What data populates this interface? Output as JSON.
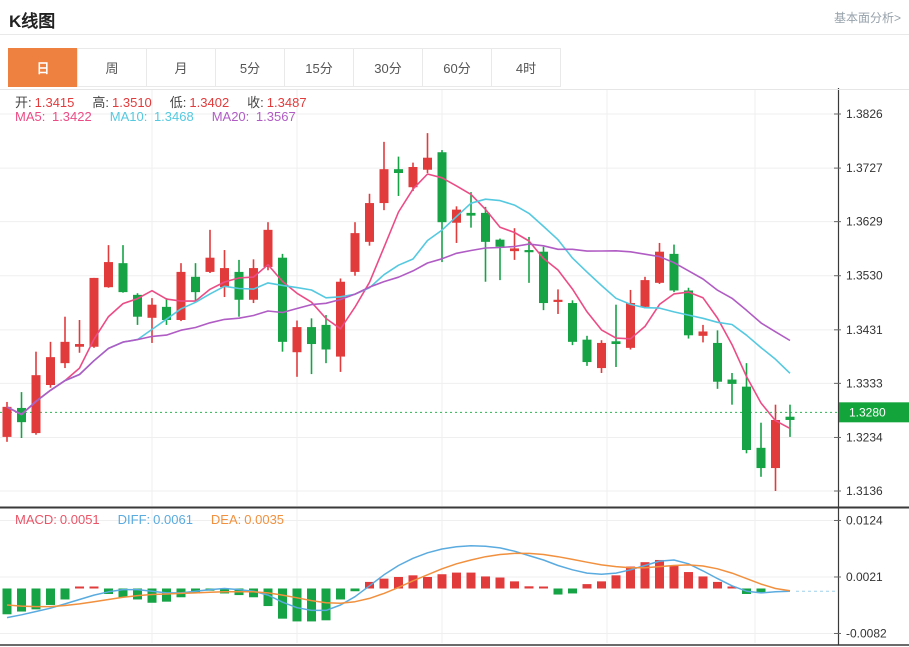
{
  "header": {
    "title": "K线图",
    "link": "基本面分析>"
  },
  "tabs": [
    {
      "label": "日",
      "active": true
    },
    {
      "label": "周",
      "active": false
    },
    {
      "label": "月",
      "active": false
    },
    {
      "label": "5分",
      "active": false
    },
    {
      "label": "15分",
      "active": false
    },
    {
      "label": "30分",
      "active": false
    },
    {
      "label": "60分",
      "active": false
    },
    {
      "label": "4时",
      "active": false
    }
  ],
  "ohlc": {
    "open_label": "开:",
    "open": "1.3415",
    "high_label": "高:",
    "high": "1.3510",
    "low_label": "低:",
    "low": "1.3402",
    "close_label": "收:",
    "close": "1.3487"
  },
  "ma_header": {
    "ma5_label": "MA5:",
    "ma5": "1.3422",
    "ma10_label": "MA10:",
    "ma10": "1.3468",
    "ma20_label": "MA20:",
    "ma20": "1.3567"
  },
  "macd_header": {
    "macd_label": "MACD:",
    "macd": "0.0051",
    "diff_label": "DIFF:",
    "diff": "0.0061",
    "dea_label": "DEA:",
    "dea": "0.0035"
  },
  "colors": {
    "up": "#e23b3c",
    "down": "#16a346",
    "ma5": "#ec4c85",
    "ma10": "#55c9e0",
    "ma20": "#b05cc4",
    "diff": "#5aabdf",
    "dea": "#f1903e",
    "accent_tab": "#ee8140",
    "tag_bg": "#14a43c",
    "dotted_line": "#2db853",
    "value_red": "#e23b3c",
    "macd_label_red": "#ea5467",
    "grid": "#efefef",
    "axis_dark": "#3a3a3a",
    "axis_text": "#333333"
  },
  "chart_data": {
    "type": "candlestick+macd",
    "title": "K线图",
    "legend": [
      "MA5",
      "MA10",
      "MA20",
      "MACD",
      "DIFF",
      "DEA"
    ],
    "price_ticks": [
      1.3826,
      1.3727,
      1.3629,
      1.353,
      1.3431,
      1.3333,
      1.3234,
      1.3136
    ],
    "macd_ticks": [
      0.0124,
      0.0021,
      -0.0082
    ],
    "current_price": 1.328,
    "price_range": [
      1.3136,
      1.3826
    ],
    "macd_range": [
      -0.0082,
      0.0124
    ],
    "ma_periods": [
      5,
      10,
      20
    ],
    "candles_ohlc": [
      [
        1.3235,
        1.3299,
        1.3226,
        1.329
      ],
      [
        1.3288,
        1.3317,
        1.3233,
        1.3262
      ],
      [
        1.3242,
        1.3391,
        1.3239,
        1.3348
      ],
      [
        1.333,
        1.3409,
        1.3325,
        1.3381
      ],
      [
        1.337,
        1.3455,
        1.3361,
        1.3409
      ],
      [
        1.34,
        1.3449,
        1.3389,
        1.3405
      ],
      [
        1.34,
        1.3526,
        1.3398,
        1.3526
      ],
      [
        1.3509,
        1.3586,
        1.3508,
        1.3555
      ],
      [
        1.3553,
        1.3586,
        1.3499,
        1.35
      ],
      [
        1.3495,
        1.3498,
        1.344,
        1.3455
      ],
      [
        1.3453,
        1.3489,
        1.3407,
        1.3477
      ],
      [
        1.3473,
        1.3489,
        1.344,
        1.3449
      ],
      [
        1.3449,
        1.3553,
        1.3447,
        1.3537
      ],
      [
        1.3528,
        1.3553,
        1.3482,
        1.35
      ],
      [
        1.3537,
        1.3614,
        1.3535,
        1.3563
      ],
      [
        1.3509,
        1.3577,
        1.3491,
        1.3544
      ],
      [
        1.3537,
        1.3559,
        1.3455,
        1.3486
      ],
      [
        1.3486,
        1.356,
        1.348,
        1.3544
      ],
      [
        1.3546,
        1.3628,
        1.354,
        1.3614
      ],
      [
        1.3563,
        1.357,
        1.3391,
        1.3409
      ],
      [
        1.339,
        1.3448,
        1.3345,
        1.3436
      ],
      [
        1.3436,
        1.3452,
        1.335,
        1.3405
      ],
      [
        1.344,
        1.3458,
        1.337,
        1.3395
      ],
      [
        1.3382,
        1.3525,
        1.3354,
        1.3519
      ],
      [
        1.3537,
        1.3628,
        1.353,
        1.3608
      ],
      [
        1.3592,
        1.368,
        1.3585,
        1.3663
      ],
      [
        1.3663,
        1.3775,
        1.365,
        1.3725
      ],
      [
        1.3725,
        1.3748,
        1.3676,
        1.3718
      ],
      [
        1.3692,
        1.3737,
        1.3685,
        1.3729
      ],
      [
        1.3724,
        1.3791,
        1.3718,
        1.3746
      ],
      [
        1.3756,
        1.376,
        1.3555,
        1.3628
      ],
      [
        1.3627,
        1.3657,
        1.359,
        1.3651
      ],
      [
        1.3645,
        1.3683,
        1.3618,
        1.364
      ],
      [
        1.3645,
        1.3656,
        1.3519,
        1.3592
      ],
      [
        1.3596,
        1.3598,
        1.3522,
        1.3583
      ],
      [
        1.3575,
        1.3617,
        1.3559,
        1.358
      ],
      [
        1.3577,
        1.3601,
        1.3517,
        1.3573
      ],
      [
        1.3574,
        1.3583,
        1.3467,
        1.348
      ],
      [
        1.3482,
        1.3505,
        1.346,
        1.3486
      ],
      [
        1.348,
        1.3485,
        1.3403,
        1.3409
      ],
      [
        1.3413,
        1.342,
        1.3365,
        1.3372
      ],
      [
        1.3361,
        1.3412,
        1.3352,
        1.3407
      ],
      [
        1.341,
        1.3477,
        1.3363,
        1.3405
      ],
      [
        1.3398,
        1.3504,
        1.3395,
        1.348
      ],
      [
        1.3473,
        1.3528,
        1.347,
        1.3522
      ],
      [
        1.3517,
        1.359,
        1.3515,
        1.3574
      ],
      [
        1.357,
        1.3587,
        1.35,
        1.3503
      ],
      [
        1.3503,
        1.3508,
        1.3415,
        1.3421
      ],
      [
        1.342,
        1.344,
        1.3408,
        1.3428
      ],
      [
        1.3407,
        1.343,
        1.3323,
        1.3336
      ],
      [
        1.334,
        1.3352,
        1.3294,
        1.3332
      ],
      [
        1.3327,
        1.337,
        1.3205,
        1.3211
      ],
      [
        1.3215,
        1.3261,
        1.3162,
        1.3178
      ],
      [
        1.3178,
        1.3294,
        1.3136,
        1.3266
      ],
      [
        1.3272,
        1.3294,
        1.3235,
        1.3266
      ]
    ],
    "macd": {
      "histogram": [
        -0.0047,
        -0.0042,
        -0.0038,
        -0.003,
        -0.002,
        0.0002,
        0.0002,
        -0.001,
        -0.0016,
        -0.002,
        -0.0026,
        -0.0024,
        -0.0016,
        -0.0009,
        -0.0004,
        -0.0009,
        -0.0012,
        -0.0016,
        -0.0032,
        -0.0055,
        -0.006,
        -0.006,
        -0.0058,
        -0.002,
        -0.0005,
        0.0012,
        0.0018,
        0.0021,
        0.0024,
        0.0021,
        0.0026,
        0.0029,
        0.0029,
        0.0022,
        0.002,
        0.0013,
        0.0004,
        0.0001,
        -0.0011,
        -0.0009,
        0.0008,
        0.0013,
        0.0024,
        0.004,
        0.0048,
        0.0052,
        0.0042,
        0.003,
        0.0022,
        0.0012,
        0.0003,
        -0.001,
        -0.0008,
        0,
        0
      ],
      "diff": [
        -0.0053,
        -0.0048,
        -0.0042,
        -0.0036,
        -0.0028,
        -0.002,
        -0.0012,
        -0.0006,
        -0.0002,
        -0.0002,
        -0.0005,
        -0.0008,
        -0.0008,
        -0.0005,
        -0.0002,
        0,
        -0.0002,
        -0.0005,
        -0.0012,
        -0.0025,
        -0.0035,
        -0.004,
        -0.004,
        -0.003,
        -0.0015,
        0.0005,
        0.0025,
        0.0042,
        0.0055,
        0.0065,
        0.0072,
        0.0076,
        0.0078,
        0.0077,
        0.0074,
        0.0068,
        0.006,
        0.0052,
        0.0042,
        0.0034,
        0.0028,
        0.0026,
        0.0028,
        0.0034,
        0.0042,
        0.005,
        0.0052,
        0.0045,
        0.0032,
        0.0018,
        0.0005,
        -0.0005,
        -0.0008,
        -0.0006,
        -0.0005
      ],
      "dea": [
        -0.003,
        -0.0032,
        -0.0033,
        -0.0033,
        -0.0031,
        -0.0028,
        -0.0024,
        -0.002,
        -0.0016,
        -0.0013,
        -0.0011,
        -0.001,
        -0.0009,
        -0.0008,
        -0.0007,
        -0.0006,
        -0.0006,
        -0.0006,
        -0.0008,
        -0.0012,
        -0.0017,
        -0.0022,
        -0.0026,
        -0.0027,
        -0.0024,
        -0.0018,
        -0.0009,
        0.0002,
        0.0014,
        0.0025,
        0.0036,
        0.0045,
        0.0052,
        0.0058,
        0.0062,
        0.0064,
        0.0064,
        0.0062,
        0.0058,
        0.0053,
        0.0048,
        0.0043,
        0.004,
        0.0038,
        0.0038,
        0.004,
        0.0042,
        0.0043,
        0.0041,
        0.0036,
        0.0028,
        0.0018,
        0.0008,
        0,
        -0.0004
      ]
    },
    "grid": true,
    "legend_position": "top-left-inline"
  }
}
